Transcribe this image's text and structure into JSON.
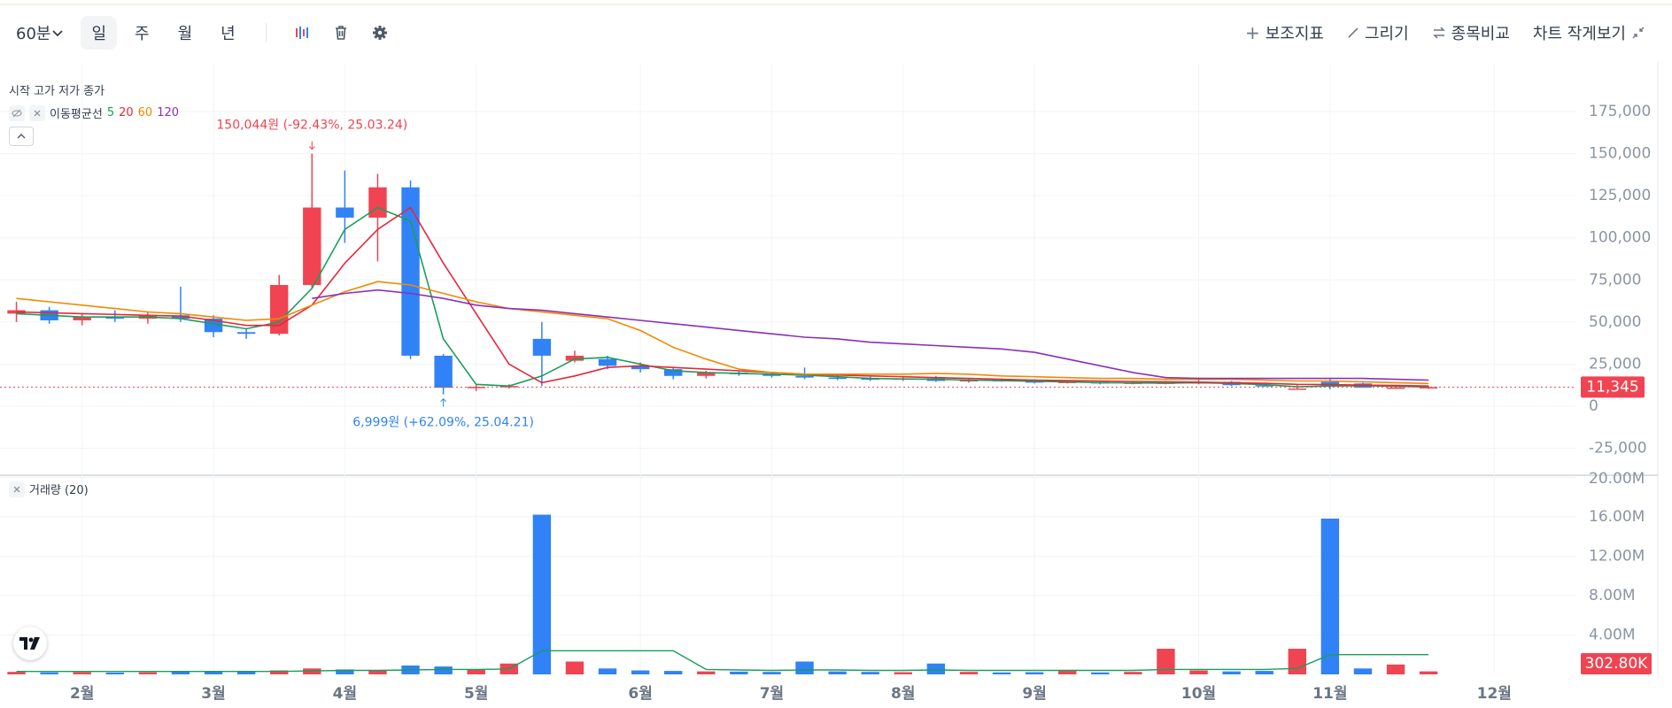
{
  "toolbar": {
    "interval": "60분",
    "periods": [
      "일",
      "주",
      "월",
      "년"
    ],
    "tools": [
      "보조지표",
      "그리기",
      "종목비교",
      "차트 작게보기"
    ]
  },
  "chart_data": [
    {
      "type": "candlestick",
      "title": "시작 고가 저가 종가",
      "ma_label": "이동평균선",
      "categories": [
        null,
        null,
        "2월",
        null,
        null,
        null,
        "3월",
        null,
        null,
        null,
        "4월",
        null,
        null,
        null,
        "5월",
        null,
        null,
        null,
        null,
        "6월",
        null,
        null,
        null,
        "7월",
        null,
        null,
        null,
        "8월",
        null,
        null,
        null,
        "9월",
        null,
        null,
        null,
        null,
        "10월",
        null,
        null,
        null,
        "11월",
        null,
        null,
        null,
        null,
        "12월",
        null,
        null
      ],
      "open": [
        55000,
        57000,
        51000,
        53000,
        52000,
        54000,
        52000,
        44000,
        43000,
        72000,
        118000,
        112000,
        130000,
        30000,
        11000,
        11500,
        40000,
        27000,
        28000,
        24000,
        22000,
        18000,
        20000,
        19000,
        18000,
        17000,
        16500,
        16000,
        16500,
        15000,
        15500,
        15000,
        14000,
        14500,
        13500,
        13500,
        13500,
        14500,
        12500,
        10000,
        14500,
        13500,
        10800,
        11100,
        null,
        null,
        null,
        null
      ],
      "high": [
        62000,
        59000,
        55000,
        57000,
        56000,
        71000,
        54000,
        46000,
        78000,
        150044,
        140000,
        138000,
        134000,
        31000,
        13000,
        13000,
        50000,
        33000,
        30000,
        26000,
        23000,
        21000,
        21000,
        20000,
        23000,
        18500,
        17500,
        17500,
        18000,
        16500,
        16500,
        16000,
        15500,
        15000,
        14500,
        15000,
        17000,
        15000,
        13500,
        12500,
        16000,
        14000,
        12500,
        12000,
        null,
        null,
        null,
        null
      ],
      "low": [
        50000,
        49000,
        48000,
        50000,
        49000,
        50000,
        41000,
        40000,
        42000,
        70000,
        97000,
        86000,
        28000,
        6999,
        9000,
        10500,
        12000,
        26000,
        22000,
        20000,
        16000,
        16500,
        18000,
        17000,
        16000,
        15500,
        15000,
        15000,
        14500,
        14000,
        14500,
        13500,
        13500,
        13000,
        13000,
        13000,
        13000,
        12000,
        11500,
        9800,
        10000,
        11500,
        10500,
        10200,
        null,
        null,
        null,
        null
      ],
      "close": [
        57000,
        51000,
        53000,
        52000,
        54000,
        52000,
        44000,
        43000,
        72000,
        118000,
        112000,
        130000,
        30000,
        11000,
        11500,
        12000,
        30000,
        30000,
        24000,
        22000,
        18000,
        20000,
        19000,
        18000,
        17000,
        16500,
        16000,
        16500,
        15000,
        15500,
        15000,
        14000,
        14500,
        13500,
        14000,
        14000,
        14500,
        12500,
        12000,
        10500,
        12000,
        11000,
        11100,
        11345,
        null,
        null,
        null,
        null
      ],
      "up_color": "#f04452",
      "down_color": "#3182f6",
      "series": [
        {
          "name": "5",
          "color": "#1a9e5c",
          "values": [
            55000,
            54000,
            53000,
            53000,
            53000,
            52000,
            49000,
            46000,
            50000,
            70000,
            105000,
            118000,
            110000,
            40000,
            13000,
            12000,
            18000,
            28000,
            29000,
            25000,
            21000,
            20000,
            19500,
            19000,
            18500,
            17500,
            16500,
            16200,
            16000,
            15500,
            15200,
            14800,
            14500,
            14000,
            13800,
            13700,
            14000,
            13500,
            12800,
            11500,
            12000,
            12200,
            11800,
            11400,
            null,
            null,
            null,
            null
          ]
        },
        {
          "name": "20",
          "color": "#e3283b",
          "values": [
            56000,
            55500,
            55000,
            54500,
            54000,
            53500,
            51000,
            48000,
            48000,
            60000,
            85000,
            105000,
            118000,
            85000,
            55000,
            25000,
            14000,
            18000,
            23000,
            24000,
            23000,
            22000,
            21000,
            20000,
            19000,
            18500,
            18000,
            17500,
            17000,
            16500,
            16000,
            15500,
            15200,
            15000,
            14700,
            14500,
            14300,
            14000,
            13600,
            13000,
            12800,
            12500,
            12300,
            12000,
            null,
            null,
            null,
            null
          ]
        },
        {
          "name": "60",
          "color": "#f08a00",
          "values": [
            64000,
            62000,
            60000,
            58000,
            56000,
            55000,
            53000,
            51000,
            52000,
            60000,
            68000,
            74000,
            72000,
            67000,
            62000,
            58000,
            56000,
            54000,
            52000,
            45000,
            35000,
            28000,
            22000,
            20000,
            19000,
            19000,
            19000,
            19000,
            19500,
            19000,
            18000,
            17500,
            17000,
            16500,
            16500,
            16000,
            16000,
            16000,
            15500,
            15000,
            15000,
            14500,
            14000,
            13500,
            null,
            null,
            null,
            null
          ]
        },
        {
          "name": "120",
          "color": "#8b2fb8",
          "values": [
            null,
            null,
            null,
            null,
            null,
            null,
            null,
            null,
            null,
            64000,
            67000,
            69000,
            67000,
            64000,
            60000,
            58000,
            57000,
            55000,
            53000,
            51000,
            49000,
            47000,
            45000,
            43000,
            41000,
            40000,
            38000,
            37000,
            36000,
            35000,
            34000,
            32000,
            28000,
            24000,
            20000,
            17000,
            16500,
            16500,
            16500,
            16500,
            16500,
            16500,
            16000,
            15500,
            null,
            null,
            null,
            null
          ]
        }
      ],
      "ylim": [
        -41000,
        195000
      ],
      "yticks": [
        {
          "value": -25000,
          "label": "-25,000"
        },
        0,
        {
          "value": 25000,
          "label": "25,000"
        },
        {
          "value": 50000,
          "label": "50,000"
        },
        {
          "value": 75000,
          "label": "75,000"
        },
        {
          "value": 100000,
          "label": "100,000"
        },
        {
          "value": 125000,
          "label": "125,000"
        },
        {
          "value": 150000,
          "label": "150,000"
        },
        {
          "value": 175000,
          "label": "175,000"
        }
      ],
      "grid": true,
      "last_value": 11345,
      "last_label": "11,345",
      "annotations": [
        {
          "text": "150,044원 (-92.43%, 25.03.24)",
          "value": 150044,
          "color": "#f04452"
        },
        {
          "text": "6,999원 (+62.09%, 25.04.21)",
          "value": 6999,
          "color": "#3182f6"
        }
      ]
    },
    {
      "type": "bar",
      "title": "거래량 (20)",
      "values": [
        250000,
        200000,
        220000,
        180000,
        210000,
        300000,
        350000,
        300000,
        400000,
        600000,
        500000,
        450000,
        900000,
        800000,
        500000,
        1100000,
        16200000,
        1300000,
        600000,
        400000,
        350000,
        300000,
        280000,
        250000,
        1300000,
        300000,
        250000,
        220000,
        1100000,
        250000,
        200000,
        220000,
        350000,
        200000,
        250000,
        2600000,
        400000,
        300000,
        350000,
        2600000,
        15800000,
        600000,
        1000000,
        302800,
        null,
        null,
        null,
        null
      ],
      "ma_values": [
        300000,
        300000,
        300000,
        300000,
        300000,
        300000,
        300000,
        300000,
        300000,
        350000,
        400000,
        400000,
        450000,
        500000,
        500000,
        550000,
        2400000,
        2400000,
        2400000,
        2400000,
        2400000,
        500000,
        450000,
        400000,
        450000,
        450000,
        400000,
        400000,
        450000,
        400000,
        400000,
        400000,
        400000,
        400000,
        400000,
        500000,
        500000,
        500000,
        500000,
        600000,
        2000000,
        2000000,
        2000000,
        2000000,
        null,
        null,
        null,
        null
      ],
      "ma_color": "#1a9e5c",
      "ylim": [
        0,
        20200000
      ],
      "yticks": [
        {
          "value": 4000000,
          "label": "4.00M"
        },
        {
          "value": 8000000,
          "label": "8.00M"
        },
        {
          "value": 12000000,
          "label": "12.00M"
        },
        {
          "value": 16000000,
          "label": "16.00M"
        },
        {
          "value": 20000000,
          "label": "20.00M"
        }
      ],
      "last_value": 302800,
      "last_label": "302.80K"
    }
  ]
}
